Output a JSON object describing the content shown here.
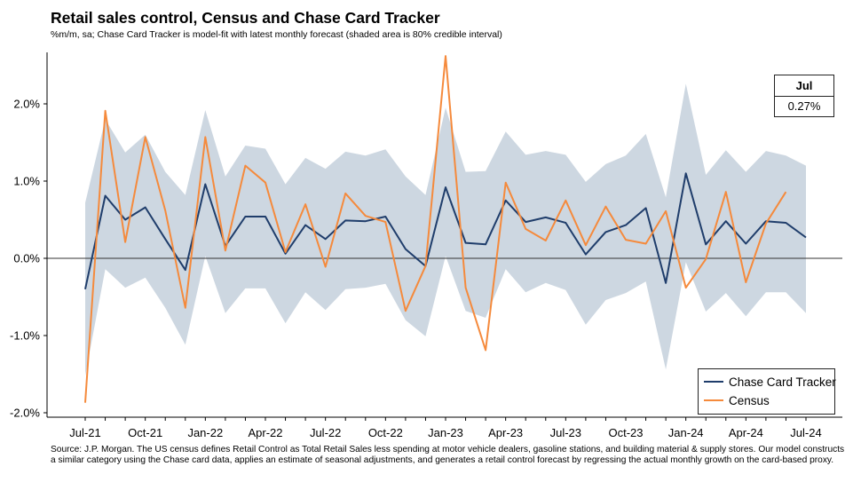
{
  "title": "Retail sales control, Census and Chase Card Tracker",
  "subtitle": "%m/m, sa; Chase Card Tracker is model-fit with latest monthly forecast (shaded area is 80% credible interval)",
  "source_lines": [
    "Source: J.P. Morgan. The US census defines Retail Control as Total Retail Sales less spending at motor vehicle dealers, gasoline stations, and building material & supply stores. Our model constructs",
    " a similar category using the Chase card data, applies an estimate of seasonal adjustments, and generates a retail control forecast by regressing the actual monthly growth on the card-based proxy."
  ],
  "callout": {
    "label": "Jul",
    "value": "0.27%"
  },
  "colors": {
    "tracker": "#1f3d6b",
    "census": "#f58a3c",
    "band": "#cdd7e1",
    "zero_line": "#333333"
  },
  "chart_data": {
    "type": "line",
    "title": "Retail sales control, Census and Chase Card Tracker",
    "ylabel": "%m/m, sa",
    "ylim": [
      -2.0,
      2.6
    ],
    "yticks": [
      -2.0,
      -1.0,
      0.0,
      1.0,
      2.0
    ],
    "ytick_labels": [
      "-2.0%",
      "-1.0%",
      "0.0%",
      "1.0%",
      "2.0%"
    ],
    "x": [
      "Jul-21",
      "Aug-21",
      "Sep-21",
      "Oct-21",
      "Nov-21",
      "Dec-21",
      "Jan-22",
      "Feb-22",
      "Mar-22",
      "Apr-22",
      "May-22",
      "Jun-22",
      "Jul-22",
      "Aug-22",
      "Sep-22",
      "Oct-22",
      "Nov-22",
      "Dec-22",
      "Jan-23",
      "Feb-23",
      "Mar-23",
      "Apr-23",
      "May-23",
      "Jun-23",
      "Jul-23",
      "Aug-23",
      "Sep-23",
      "Oct-23",
      "Nov-23",
      "Dec-23",
      "Jan-24",
      "Feb-24",
      "Mar-24",
      "Apr-24",
      "May-24",
      "Jun-24",
      "Jul-24"
    ],
    "xtick_labels": [
      "Jul-21",
      "Oct-21",
      "Jan-22",
      "Apr-22",
      "Jul-22",
      "Oct-22",
      "Jan-23",
      "Apr-23",
      "Jul-23",
      "Oct-23",
      "Jan-24",
      "Apr-24",
      "Jul-24"
    ],
    "series": [
      {
        "name": "Chase Card Tracker",
        "values": [
          -0.4,
          0.81,
          0.5,
          0.66,
          0.25,
          -0.15,
          0.96,
          0.16,
          0.54,
          0.54,
          0.06,
          0.43,
          0.25,
          0.49,
          0.48,
          0.54,
          0.12,
          -0.1,
          0.92,
          0.2,
          0.18,
          0.75,
          0.47,
          0.53,
          0.46,
          0.05,
          0.34,
          0.43,
          0.65,
          -0.32,
          1.1,
          0.18,
          0.48,
          0.19,
          0.48,
          0.46,
          0.27
        ]
      },
      {
        "name": "Census",
        "values": [
          -1.87,
          1.91,
          0.21,
          1.57,
          0.62,
          -0.64,
          1.57,
          0.1,
          1.2,
          0.98,
          0.08,
          0.7,
          -0.11,
          0.84,
          0.55,
          0.47,
          -0.68,
          -0.1,
          2.62,
          -0.38,
          -1.19,
          0.98,
          0.38,
          0.23,
          0.75,
          0.17,
          0.67,
          0.24,
          0.19,
          0.61,
          -0.38,
          -0.01,
          0.86,
          -0.31,
          0.45,
          0.86,
          null
        ]
      }
    ],
    "band": {
      "name": "80% credible interval",
      "upper": [
        0.72,
        1.8,
        1.37,
        1.6,
        1.12,
        0.82,
        1.92,
        1.06,
        1.46,
        1.42,
        0.96,
        1.3,
        1.16,
        1.38,
        1.33,
        1.41,
        1.06,
        0.82,
        1.95,
        1.12,
        1.13,
        1.64,
        1.34,
        1.39,
        1.34,
        0.99,
        1.22,
        1.33,
        1.61,
        0.79,
        2.26,
        1.08,
        1.4,
        1.12,
        1.39,
        1.33,
        1.2
      ],
      "lower": [
        -1.52,
        -0.14,
        -0.38,
        -0.25,
        -0.64,
        -1.12,
        0.03,
        -0.71,
        -0.39,
        -0.39,
        -0.84,
        -0.44,
        -0.67,
        -0.4,
        -0.38,
        -0.33,
        -0.8,
        -1.01,
        0.03,
        -0.68,
        -0.77,
        -0.14,
        -0.44,
        -0.32,
        -0.41,
        -0.86,
        -0.54,
        -0.45,
        -0.3,
        -1.44,
        -0.05,
        -0.69,
        -0.45,
        -0.75,
        -0.44,
        -0.44,
        -0.71
      ]
    },
    "legend": [
      "Chase Card Tracker",
      "Census"
    ],
    "legend_position": "bottom-right",
    "callout_position": "top-right",
    "grid": false
  }
}
